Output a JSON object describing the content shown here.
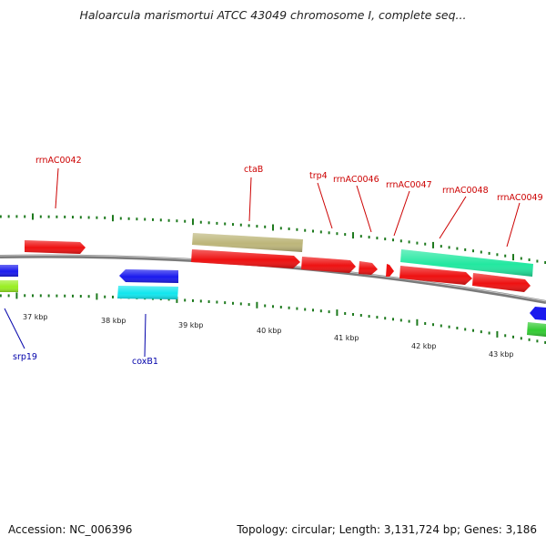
{
  "title": "Haloarcula marismortui ATCC 43049 chromosome I, complete seq...",
  "footer": {
    "accession": "Accession: NC_006396",
    "summary": "Topology: circular; Length: 3,131,724 bp; Genes: 3,186"
  },
  "colors": {
    "backbone": "#7a7a7a",
    "tick": "#1e7a1e",
    "label_top": "#cc0000",
    "label_bottom": "#0000aa",
    "red_gene": "#ee1111",
    "blue_gene": "#1a1aee",
    "cyan_gene": "#11e6ee",
    "green_gene": "#33cc33",
    "lime_gene": "#99ee22",
    "khaki_gene": "#bdb67a",
    "aqua_gene": "#22e8a0"
  },
  "kbp_labels": [
    "37 kbp",
    "38 kbp",
    "39 kbp",
    "40 kbp",
    "41 kbp",
    "42 kbp",
    "43 kbp"
  ],
  "gene_labels_top": [
    "rrnAC0042",
    "ctaB",
    "trp4",
    "rrnAC0046",
    "rrnAC0047",
    "rrnAC0048",
    "rrnAC0049"
  ],
  "gene_labels_bottom": [
    "srp19",
    "coxB1"
  ]
}
